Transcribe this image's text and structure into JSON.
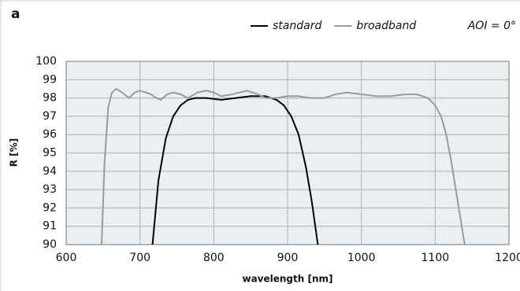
{
  "chart_data": {
    "type": "line",
    "panel_label": "a",
    "annotation": "AOI = 0°",
    "xlabel": "wavelength [nm]",
    "ylabel": "R [%]",
    "xlim": [
      600,
      1200
    ],
    "xticks": [
      600,
      700,
      800,
      900,
      1000,
      1100,
      1200
    ],
    "ylim": [
      90,
      100
    ],
    "yticks": [
      90,
      91,
      92,
      93,
      94,
      95,
      96,
      97,
      98,
      99,
      100
    ],
    "grid": true,
    "series": [
      {
        "name": "standard",
        "color": "#000000",
        "x": [
          717,
          725,
          735,
          745,
          755,
          765,
          775,
          790,
          810,
          830,
          850,
          870,
          885,
          895,
          905,
          915,
          925,
          933,
          941
        ],
        "values": [
          90,
          93.5,
          95.8,
          97.0,
          97.6,
          97.9,
          98.0,
          98.0,
          97.9,
          98.0,
          98.1,
          98.1,
          97.9,
          97.6,
          97.0,
          96.0,
          94.2,
          92.3,
          90
        ]
      },
      {
        "name": "broadband",
        "color": "#9a9a9a",
        "x": [
          648,
          652,
          657,
          662,
          668,
          676,
          685,
          693,
          700,
          708,
          715,
          722,
          728,
          737,
          745,
          755,
          765,
          778,
          790,
          800,
          810,
          825,
          845,
          860,
          870,
          885,
          900,
          915,
          930,
          950,
          965,
          980,
          1000,
          1020,
          1040,
          1060,
          1075,
          1090,
          1100,
          1108,
          1115,
          1122,
          1128,
          1134,
          1140
        ],
        "values": [
          90,
          94.5,
          97.5,
          98.3,
          98.5,
          98.3,
          98.0,
          98.3,
          98.4,
          98.3,
          98.2,
          98.0,
          97.9,
          98.2,
          98.3,
          98.2,
          98.0,
          98.3,
          98.4,
          98.3,
          98.1,
          98.2,
          98.4,
          98.2,
          98.0,
          98.0,
          98.1,
          98.1,
          98.0,
          98.0,
          98.2,
          98.3,
          98.2,
          98.1,
          98.1,
          98.2,
          98.2,
          98.0,
          97.6,
          97.0,
          96.0,
          94.5,
          93.0,
          91.5,
          90
        ]
      }
    ]
  }
}
